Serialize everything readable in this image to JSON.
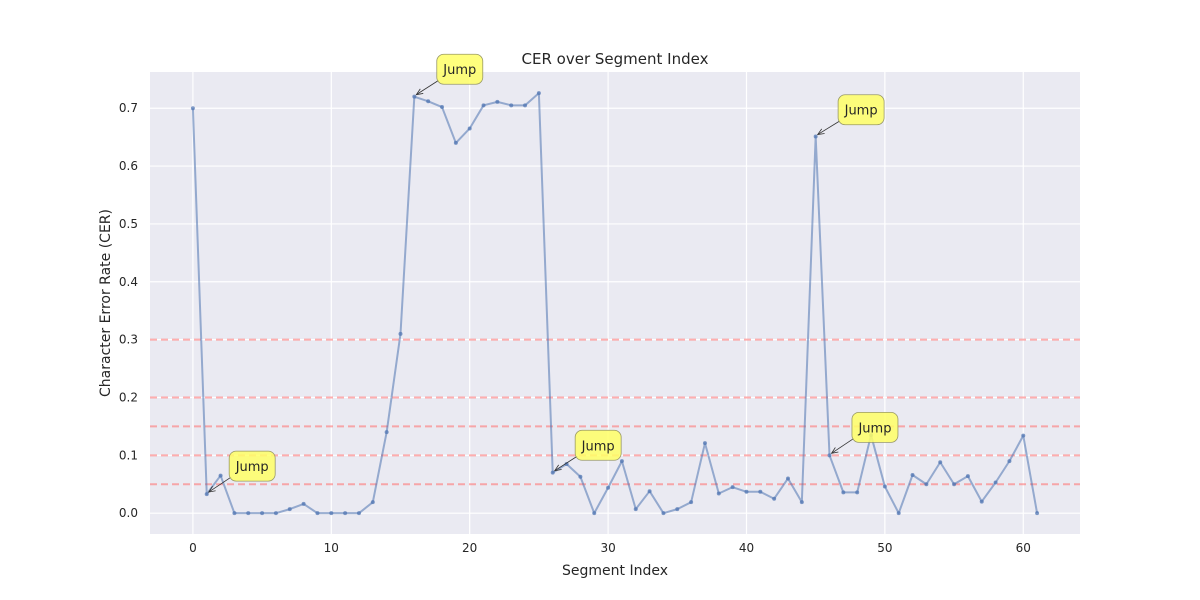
{
  "chart_data": {
    "type": "line",
    "title": "CER over Segment Index",
    "xlabel": "Segment Index",
    "ylabel": "Character Error Rate (CER)",
    "xlim": [
      -3.1,
      64.1
    ],
    "ylim": [
      -0.036,
      0.7626
    ],
    "xticks": [
      0,
      10,
      20,
      30,
      40,
      50,
      60
    ],
    "yticks": [
      0.0,
      0.1,
      0.2,
      0.3,
      0.4,
      0.5,
      0.6,
      0.7
    ],
    "grid": true,
    "colors": {
      "line": "#4c72b0",
      "threshold": "#ff6b6b",
      "annotation_fill": "#ffff66",
      "plot_bg": "#eaeaf2"
    },
    "thresholds": [
      0.05,
      0.1,
      0.15,
      0.2,
      0.3
    ],
    "series": [
      {
        "x": [
          0,
          1,
          2,
          3,
          4,
          5,
          6,
          7,
          8,
          9,
          10,
          11,
          12,
          13,
          14,
          15,
          16,
          17,
          18,
          19,
          20,
          21,
          22,
          23,
          24,
          25,
          26,
          27,
          28,
          29,
          30,
          31,
          32,
          33,
          34,
          35,
          36,
          37,
          38,
          39,
          40,
          41,
          42,
          43,
          44,
          45,
          46,
          47,
          48,
          49,
          50,
          51,
          52,
          53,
          54,
          55,
          56,
          57,
          58,
          59,
          60,
          61
        ],
        "values": [
          0.7,
          0.033,
          0.065,
          0.0,
          0.0,
          0.0,
          0.0,
          0.007,
          0.016,
          0.0,
          0.0,
          0.0,
          0.0,
          0.019,
          0.14,
          0.31,
          0.72,
          0.712,
          0.702,
          0.64,
          0.665,
          0.705,
          0.711,
          0.705,
          0.705,
          0.726,
          0.07,
          0.085,
          0.063,
          0.0,
          0.044,
          0.09,
          0.007,
          0.038,
          0.0,
          0.007,
          0.019,
          0.121,
          0.034,
          0.045,
          0.037,
          0.037,
          0.025,
          0.06,
          0.019,
          0.651,
          0.1,
          0.036,
          0.036,
          0.135,
          0.046,
          0.0,
          0.066,
          0.05,
          0.088,
          0.05,
          0.064,
          0.02,
          0.053,
          0.09,
          0.134,
          0.0
        ]
      }
    ],
    "annotations": [
      {
        "text": "Jump",
        "x": 1,
        "y": 0.033,
        "tx": 3.2,
        "ty": 0.071
      },
      {
        "text": "Jump",
        "x": 16,
        "y": 0.72,
        "tx": 18.2,
        "ty": 0.757
      },
      {
        "text": "Jump",
        "x": 26,
        "y": 0.07,
        "tx": 28.2,
        "ty": 0.107
      },
      {
        "text": "Jump",
        "x": 45,
        "y": 0.651,
        "tx": 47.2,
        "ty": 0.687
      },
      {
        "text": "Jump",
        "x": 46,
        "y": 0.1,
        "tx": 48.2,
        "ty": 0.138
      }
    ]
  }
}
